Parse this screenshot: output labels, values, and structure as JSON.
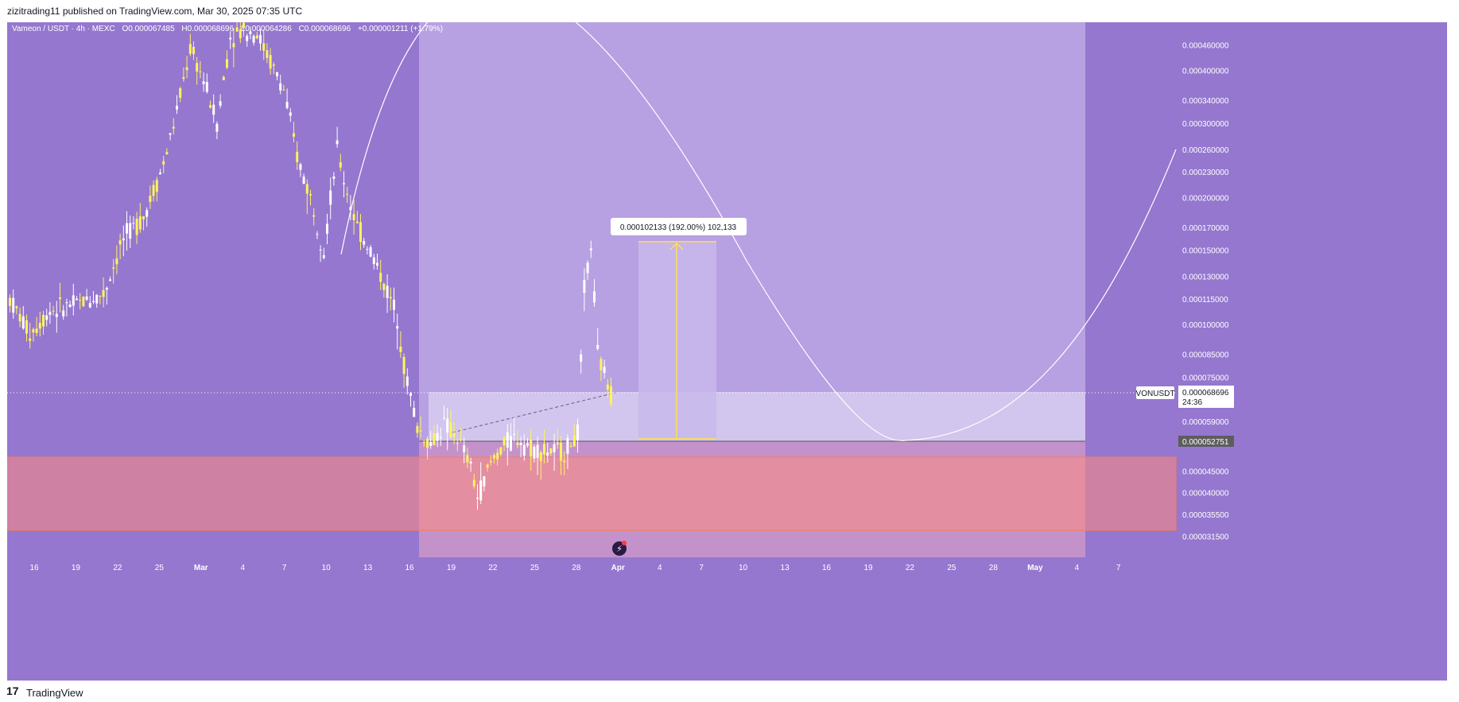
{
  "publisher_line": "zizitrading11 published on TradingView.com, Mar 30, 2025 07:35 UTC",
  "brand": {
    "logo": "17",
    "name": "TradingView"
  },
  "colors": {
    "bg": "#9577cf",
    "candle": "#fff35c",
    "candle_up": "#ffffff",
    "zone_light": "#c9b9ec",
    "zone_pale": "#e8e0f6",
    "zone_red": "#ff8a80",
    "zone_orange": "#ff7a45"
  },
  "chart_data": {
    "type": "candlestick",
    "symbol_header": {
      "name": "Vameon / USDT · 4h · MEXC",
      "open": "O0.000067485",
      "high": "H0.000068696",
      "low": "L0.000064286",
      "close": "C0.000068696",
      "change": "+0.000001211 (+1.79%)"
    },
    "y_axis": {
      "scale": "log",
      "ticks": [
        "0.000460000",
        "0.000400000",
        "0.000340000",
        "0.000300000",
        "0.000260000",
        "0.000230000",
        "0.000200000",
        "0.000170000",
        "0.000150000",
        "0.000130000",
        "0.000115000",
        "0.000100000",
        "0.000085000",
        "0.000075000",
        "0.000059000",
        "0.000045000",
        "0.000040000",
        "0.000035500",
        "0.000031500"
      ]
    },
    "x_axis": {
      "ticks": [
        "16",
        "19",
        "22",
        "25",
        "Mar",
        "4",
        "7",
        "10",
        "13",
        "16",
        "19",
        "22",
        "25",
        "28",
        "Apr",
        "4",
        "7",
        "10",
        "13",
        "16",
        "19",
        "22",
        "25",
        "28",
        "May",
        "4",
        "7"
      ]
    },
    "last_price": {
      "symbol": "VONUSDT",
      "value": "0.000068696",
      "countdown": "24:36"
    },
    "level_marker": "0.000052751",
    "measure_label": "0.000102133 (192.00%) 102,133",
    "series_anchor_points": [
      [
        0,
        0.000115
      ],
      [
        6,
        9.5e-05
      ],
      [
        12,
        0.000108
      ],
      [
        20,
        0.000112
      ],
      [
        28,
        0.000118
      ],
      [
        34,
        0.00016
      ],
      [
        40,
        0.00018
      ],
      [
        46,
        0.00024
      ],
      [
        50,
        0.00032
      ],
      [
        54,
        0.00045
      ],
      [
        58,
        0.00038
      ],
      [
        62,
        0.0003
      ],
      [
        66,
        0.00048
      ],
      [
        70,
        0.0005
      ],
      [
        74,
        0.00049
      ],
      [
        78,
        0.00042
      ],
      [
        82,
        0.00036
      ],
      [
        86,
        0.00025
      ],
      [
        90,
        0.0002
      ],
      [
        94,
        0.00015
      ],
      [
        98,
        0.00026
      ],
      [
        100,
        0.00022
      ],
      [
        104,
        0.00017
      ],
      [
        108,
        0.00015
      ],
      [
        112,
        0.000125
      ],
      [
        116,
        0.000105
      ],
      [
        118,
        8e-05
      ],
      [
        122,
        5.7e-05
      ],
      [
        126,
        5.2e-05
      ],
      [
        130,
        5.8e-05
      ],
      [
        134,
        5.4e-05
      ],
      [
        138,
        4.6e-05
      ],
      [
        140,
        3.9e-05
      ],
      [
        144,
        4.7e-05
      ],
      [
        148,
        5.2e-05
      ],
      [
        152,
        5.4e-05
      ],
      [
        156,
        5.1e-05
      ],
      [
        160,
        5e-05
      ],
      [
        166,
        5e-05
      ],
      [
        170,
        5.5e-05
      ],
      [
        172,
        0.00012
      ],
      [
        174,
        0.000155
      ],
      [
        176,
        8.5e-05
      ],
      [
        180,
        6.8696e-05
      ]
    ]
  }
}
